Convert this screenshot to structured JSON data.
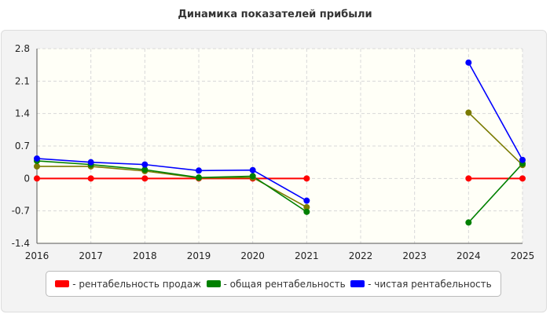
{
  "chart_data": {
    "type": "line",
    "title": "Динамика показателей прибыли",
    "x": [
      "2016",
      "2017",
      "2018",
      "2019",
      "2020",
      "2021",
      "2022",
      "2023",
      "2024",
      "2025"
    ],
    "ylim": [
      -1.4,
      2.8
    ],
    "yticks": [
      "2.8",
      "2.1",
      "1.4",
      "0.7",
      "0",
      "-0.7",
      "-1.4"
    ],
    "grid": true,
    "legend_position": "bottom",
    "series": [
      {
        "name": "рентабельность продаж",
        "color": "#ff0000",
        "values": [
          0,
          0,
          0,
          0,
          0,
          0,
          null,
          null,
          0,
          0
        ]
      },
      {
        "name": "общая рентабельность",
        "color": "#008000",
        "values": [
          0.38,
          0.3,
          0.19,
          0.02,
          0.05,
          -0.72,
          null,
          null,
          -0.95,
          0.32
        ]
      },
      {
        "name": "чистая рентабельность",
        "color": "#0000ff",
        "values": [
          0.43,
          0.35,
          0.3,
          0.17,
          0.18,
          -0.48,
          null,
          null,
          2.5,
          0.4
        ]
      },
      {
        "name": "",
        "color": "#7a7a00",
        "values": [
          0.26,
          0.26,
          0.16,
          0.01,
          0.02,
          -0.62,
          null,
          null,
          1.42,
          0.29
        ]
      }
    ]
  }
}
